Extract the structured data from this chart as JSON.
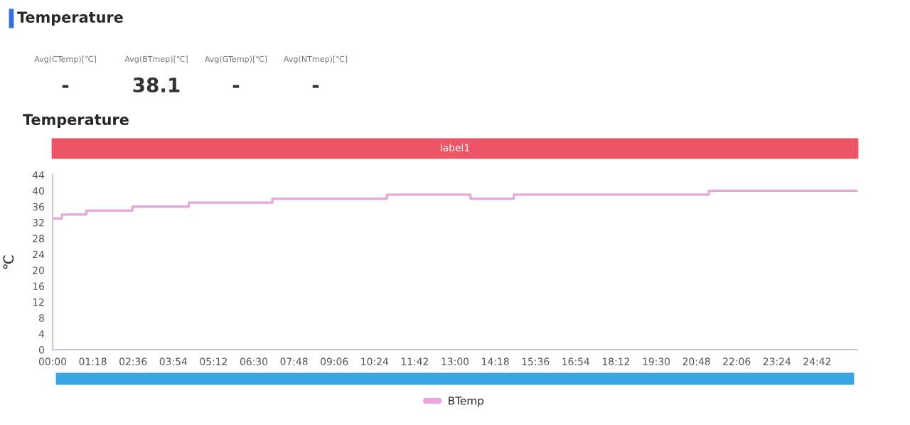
{
  "chart_data": {
    "type": "step",
    "title": "Temperature",
    "subtitle": "Temperature",
    "ylabel": "℃",
    "annotations": [
      "Avg(CTemp)[℃]",
      "Avg(BTmep)[℃]",
      "Avg(GTemp)[℃]",
      "Avg(NTmep)[℃]",
      "-",
      "38.1",
      "-",
      "-",
      "label1"
    ],
    "x": [
      0,
      0.3,
      1.09,
      2.58,
      4.4,
      7.1,
      10.8,
      13.5,
      14.9,
      21.2,
      26
    ],
    "series": [
      {
        "name": "BTemp",
        "color": "#e8a6dc",
        "values": [
          33,
          34,
          35,
          36,
          37,
          38,
          39,
          38,
          39,
          40,
          40
        ]
      }
    ],
    "xlim": [
      0,
      26
    ],
    "xticks": [
      {
        "value": 0,
        "label": "00:00"
      },
      {
        "value": 1.3,
        "label": "01:18"
      },
      {
        "value": 2.6,
        "label": "02:36"
      },
      {
        "value": 3.9,
        "label": "03:54"
      },
      {
        "value": 5.2,
        "label": "05:12"
      },
      {
        "value": 6.5,
        "label": "06:30"
      },
      {
        "value": 7.8,
        "label": "07:48"
      },
      {
        "value": 9.1,
        "label": "09:06"
      },
      {
        "value": 10.4,
        "label": "10:24"
      },
      {
        "value": 11.7,
        "label": "11:42"
      },
      {
        "value": 13,
        "label": "13:00"
      },
      {
        "value": 14.3,
        "label": "14:18"
      },
      {
        "value": 15.6,
        "label": "15:36"
      },
      {
        "value": 16.9,
        "label": "16:54"
      },
      {
        "value": 18.2,
        "label": "18:12"
      },
      {
        "value": 19.5,
        "label": "19:30"
      },
      {
        "value": 20.8,
        "label": "20:48"
      },
      {
        "value": 22.1,
        "label": "22:06"
      },
      {
        "value": 23.4,
        "label": "23:24"
      },
      {
        "value": 24.7,
        "label": "24:42"
      }
    ],
    "ylim": [
      0,
      44
    ],
    "yticks": [
      0,
      4,
      8,
      12,
      16,
      20,
      24,
      28,
      32,
      36,
      40,
      44
    ],
    "grid": false,
    "legend": "bottom"
  }
}
